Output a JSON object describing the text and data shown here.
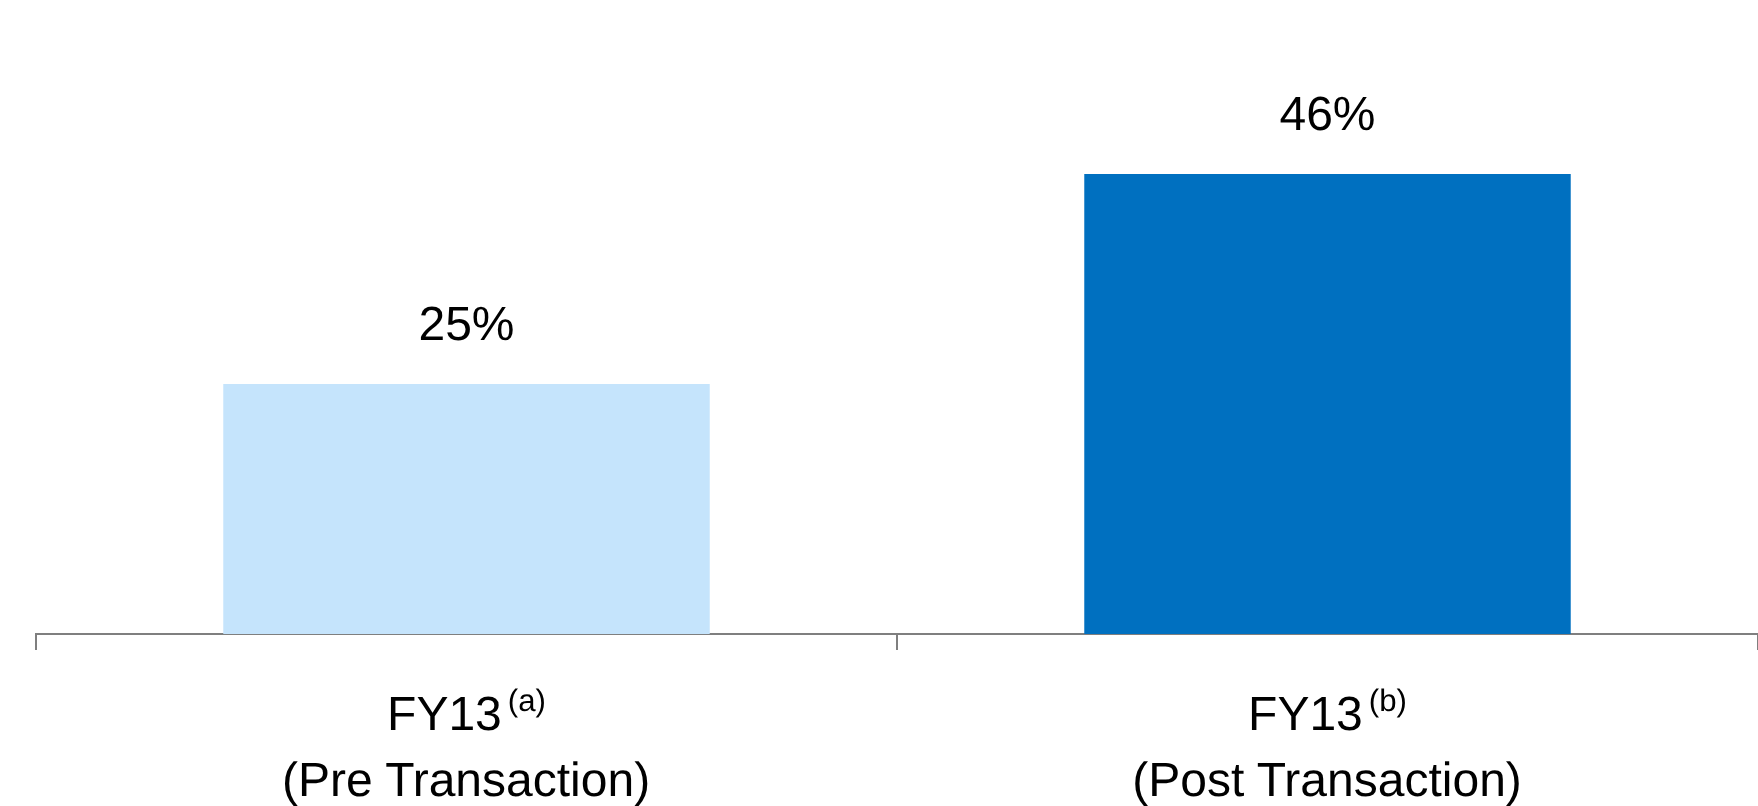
{
  "chart_data": {
    "type": "bar",
    "categories": [
      "FY13$^{(a)}$\n(Pre Transaction)",
      "FY13$^{(b)}$\n(Post Transaction)"
    ],
    "values": [
      25,
      46
    ],
    "colors": [
      "#c5e4fc",
      "#0070c0"
    ],
    "value_labels": [
      "25%",
      "46%"
    ],
    "tick_labels": "x",
    "legend": false
  }
}
